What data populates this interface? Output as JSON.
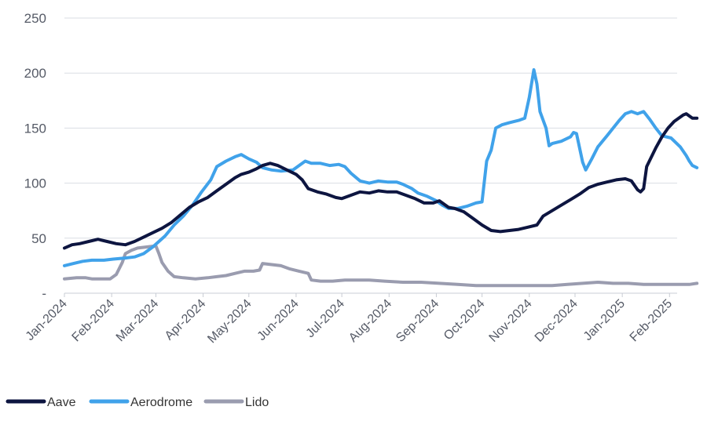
{
  "chart_data": {
    "type": "line",
    "title": "",
    "xlabel": "",
    "ylabel": "",
    "ylim": [
      0,
      250
    ],
    "y_ticks": [
      0,
      50,
      100,
      150,
      200,
      250
    ],
    "y_tick_labels": [
      "-",
      "50",
      "100",
      "150",
      "200",
      "250"
    ],
    "x_range_days": [
      0,
      402
    ],
    "x_ticks": [
      {
        "label": "Jan-2024",
        "day": 0
      },
      {
        "label": "Feb-2024",
        "day": 31
      },
      {
        "label": "Mar-2024",
        "day": 60
      },
      {
        "label": "Apr-2024",
        "day": 91
      },
      {
        "label": "May-2024",
        "day": 121
      },
      {
        "label": "Jun-2024",
        "day": 152
      },
      {
        "label": "Jul-2024",
        "day": 182
      },
      {
        "label": "Aug-2024",
        "day": 213
      },
      {
        "label": "Sep-2024",
        "day": 244
      },
      {
        "label": "Oct-2024",
        "day": 274
      },
      {
        "label": "Nov-2024",
        "day": 305
      },
      {
        "label": "Dec-2024",
        "day": 335
      },
      {
        "label": "Jan-2025",
        "day": 366
      },
      {
        "label": "Feb-2025",
        "day": 397
      }
    ],
    "grid": true,
    "legend_position": "bottom-left",
    "series": [
      {
        "name": "Aave",
        "color": "#0d1540",
        "points": [
          [
            0,
            41
          ],
          [
            5,
            44
          ],
          [
            10,
            45
          ],
          [
            16,
            47
          ],
          [
            22,
            49
          ],
          [
            28,
            47
          ],
          [
            34,
            45
          ],
          [
            40,
            44
          ],
          [
            46,
            47
          ],
          [
            52,
            51
          ],
          [
            58,
            55
          ],
          [
            64,
            59
          ],
          [
            70,
            64
          ],
          [
            76,
            71
          ],
          [
            82,
            78
          ],
          [
            88,
            83
          ],
          [
            94,
            87
          ],
          [
            100,
            93
          ],
          [
            106,
            99
          ],
          [
            112,
            105
          ],
          [
            116,
            108
          ],
          [
            121,
            110
          ],
          [
            126,
            113
          ],
          [
            130,
            116
          ],
          [
            135,
            118
          ],
          [
            140,
            116
          ],
          [
            146,
            112
          ],
          [
            152,
            108
          ],
          [
            156,
            103
          ],
          [
            160,
            95
          ],
          [
            166,
            92
          ],
          [
            172,
            90
          ],
          [
            178,
            87
          ],
          [
            182,
            86
          ],
          [
            188,
            89
          ],
          [
            194,
            92
          ],
          [
            200,
            91
          ],
          [
            206,
            93
          ],
          [
            212,
            92
          ],
          [
            218,
            92
          ],
          [
            224,
            89
          ],
          [
            230,
            86
          ],
          [
            236,
            82
          ],
          [
            242,
            82
          ],
          [
            246,
            84
          ],
          [
            252,
            78
          ],
          [
            256,
            77
          ],
          [
            262,
            74
          ],
          [
            268,
            68
          ],
          [
            274,
            62
          ],
          [
            280,
            57
          ],
          [
            286,
            56
          ],
          [
            292,
            57
          ],
          [
            298,
            58
          ],
          [
            304,
            60
          ],
          [
            310,
            62
          ],
          [
            314,
            70
          ],
          [
            320,
            75
          ],
          [
            326,
            80
          ],
          [
            332,
            85
          ],
          [
            338,
            90
          ],
          [
            344,
            96
          ],
          [
            350,
            99
          ],
          [
            356,
            101
          ],
          [
            362,
            103
          ],
          [
            368,
            104
          ],
          [
            372,
            102
          ],
          [
            376,
            94
          ],
          [
            378,
            92
          ],
          [
            380,
            95
          ],
          [
            382,
            115
          ],
          [
            388,
            132
          ],
          [
            392,
            142
          ],
          [
            396,
            150
          ],
          [
            400,
            156
          ],
          [
            404,
            160
          ],
          [
            406,
            162
          ],
          [
            408,
            163
          ],
          [
            412,
            159
          ],
          [
            415,
            159
          ]
        ]
      },
      {
        "name": "Aerodrome",
        "color": "#40a2ea",
        "points": [
          [
            0,
            25
          ],
          [
            6,
            27
          ],
          [
            12,
            29
          ],
          [
            18,
            30
          ],
          [
            26,
            30
          ],
          [
            32,
            31
          ],
          [
            40,
            32
          ],
          [
            46,
            33
          ],
          [
            52,
            36
          ],
          [
            58,
            42
          ],
          [
            62,
            47
          ],
          [
            66,
            52
          ],
          [
            72,
            62
          ],
          [
            78,
            70
          ],
          [
            84,
            80
          ],
          [
            90,
            92
          ],
          [
            96,
            103
          ],
          [
            100,
            115
          ],
          [
            106,
            120
          ],
          [
            112,
            124
          ],
          [
            116,
            126
          ],
          [
            121,
            122
          ],
          [
            126,
            119
          ],
          [
            130,
            114
          ],
          [
            136,
            112
          ],
          [
            142,
            111
          ],
          [
            150,
            112
          ],
          [
            154,
            116
          ],
          [
            158,
            120
          ],
          [
            162,
            118
          ],
          [
            168,
            118
          ],
          [
            174,
            116
          ],
          [
            180,
            117
          ],
          [
            184,
            115
          ],
          [
            188,
            109
          ],
          [
            194,
            102
          ],
          [
            200,
            100
          ],
          [
            206,
            102
          ],
          [
            212,
            101
          ],
          [
            218,
            101
          ],
          [
            222,
            99
          ],
          [
            228,
            95
          ],
          [
            232,
            91
          ],
          [
            238,
            88
          ],
          [
            244,
            84
          ],
          [
            248,
            80
          ],
          [
            252,
            77
          ],
          [
            258,
            77
          ],
          [
            264,
            79
          ],
          [
            270,
            82
          ],
          [
            274,
            83
          ],
          [
            277,
            120
          ],
          [
            280,
            130
          ],
          [
            283,
            150
          ],
          [
            287,
            153
          ],
          [
            292,
            155
          ],
          [
            298,
            157
          ],
          [
            302,
            159
          ],
          [
            305,
            178
          ],
          [
            308,
            203
          ],
          [
            310,
            190
          ],
          [
            312,
            165
          ],
          [
            316,
            150
          ],
          [
            318,
            134
          ],
          [
            320,
            136
          ],
          [
            326,
            138
          ],
          [
            332,
            142
          ],
          [
            334,
            146
          ],
          [
            336,
            145
          ],
          [
            338,
            132
          ],
          [
            340,
            119
          ],
          [
            342,
            112
          ],
          [
            346,
            122
          ],
          [
            350,
            133
          ],
          [
            356,
            143
          ],
          [
            360,
            150
          ],
          [
            364,
            157
          ],
          [
            368,
            163
          ],
          [
            372,
            165
          ],
          [
            376,
            163
          ],
          [
            380,
            165
          ],
          [
            384,
            158
          ],
          [
            388,
            150
          ],
          [
            392,
            143
          ],
          [
            398,
            141
          ],
          [
            404,
            133
          ],
          [
            408,
            125
          ],
          [
            410,
            120
          ],
          [
            412,
            116
          ],
          [
            415,
            114
          ]
        ]
      },
      {
        "name": "Lido",
        "color": "#9a9caf",
        "points": [
          [
            0,
            13
          ],
          [
            8,
            14
          ],
          [
            14,
            14
          ],
          [
            18,
            13
          ],
          [
            24,
            13
          ],
          [
            30,
            13
          ],
          [
            34,
            17
          ],
          [
            38,
            28
          ],
          [
            40,
            36
          ],
          [
            44,
            39
          ],
          [
            48,
            41
          ],
          [
            54,
            42
          ],
          [
            60,
            43
          ],
          [
            62,
            36
          ],
          [
            64,
            28
          ],
          [
            68,
            20
          ],
          [
            72,
            15
          ],
          [
            78,
            14
          ],
          [
            86,
            13
          ],
          [
            94,
            14
          ],
          [
            100,
            15
          ],
          [
            106,
            16
          ],
          [
            112,
            18
          ],
          [
            118,
            20
          ],
          [
            124,
            20
          ],
          [
            128,
            21
          ],
          [
            130,
            27
          ],
          [
            136,
            26
          ],
          [
            142,
            25
          ],
          [
            148,
            22
          ],
          [
            154,
            20
          ],
          [
            160,
            18
          ],
          [
            162,
            12
          ],
          [
            168,
            11
          ],
          [
            176,
            11
          ],
          [
            184,
            12
          ],
          [
            192,
            12
          ],
          [
            200,
            12
          ],
          [
            210,
            11
          ],
          [
            222,
            10
          ],
          [
            234,
            10
          ],
          [
            246,
            9
          ],
          [
            258,
            8
          ],
          [
            270,
            7
          ],
          [
            280,
            7
          ],
          [
            290,
            7
          ],
          [
            300,
            7
          ],
          [
            310,
            7
          ],
          [
            320,
            7
          ],
          [
            330,
            8
          ],
          [
            340,
            9
          ],
          [
            350,
            10
          ],
          [
            360,
            9
          ],
          [
            370,
            9
          ],
          [
            380,
            8
          ],
          [
            390,
            8
          ],
          [
            400,
            8
          ],
          [
            410,
            8
          ],
          [
            415,
            9
          ]
        ]
      }
    ]
  }
}
